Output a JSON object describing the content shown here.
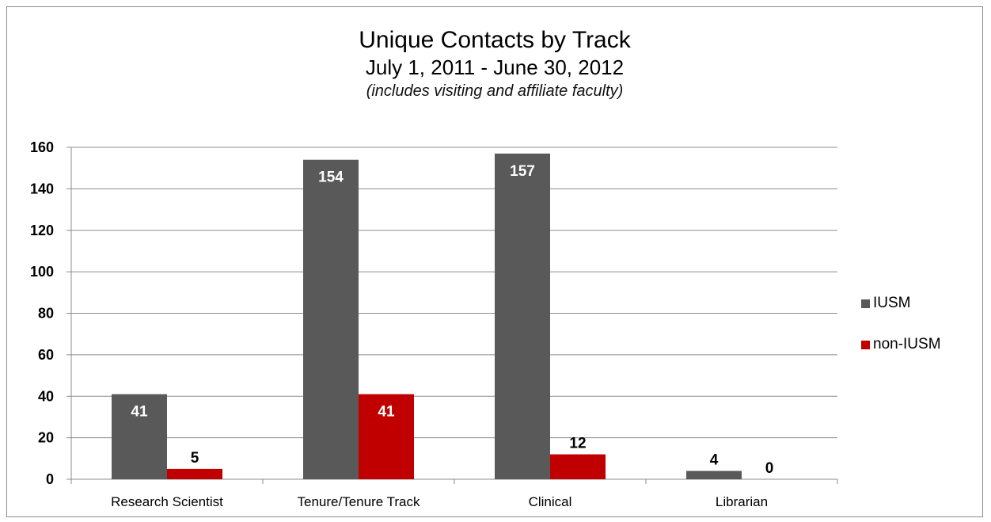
{
  "chart_data": {
    "type": "bar",
    "title": "Unique Contacts by Track",
    "subtitle": "July 1, 2011 - June 30, 2012",
    "note": "(includes visiting and affiliate faculty)",
    "categories": [
      "Research Scientist",
      "Tenure/Tenure Track",
      "Clinical",
      "Librarian"
    ],
    "series": [
      {
        "name": "IUSM",
        "color": "#595959",
        "values": [
          41,
          154,
          157,
          4
        ]
      },
      {
        "name": "non-IUSM",
        "color": "#c00000",
        "values": [
          5,
          41,
          12,
          0
        ]
      }
    ],
    "ylim": [
      0,
      160
    ],
    "yticks": [
      0,
      20,
      40,
      60,
      80,
      100,
      120,
      140,
      160
    ],
    "grid": true,
    "legend_position": "right"
  }
}
